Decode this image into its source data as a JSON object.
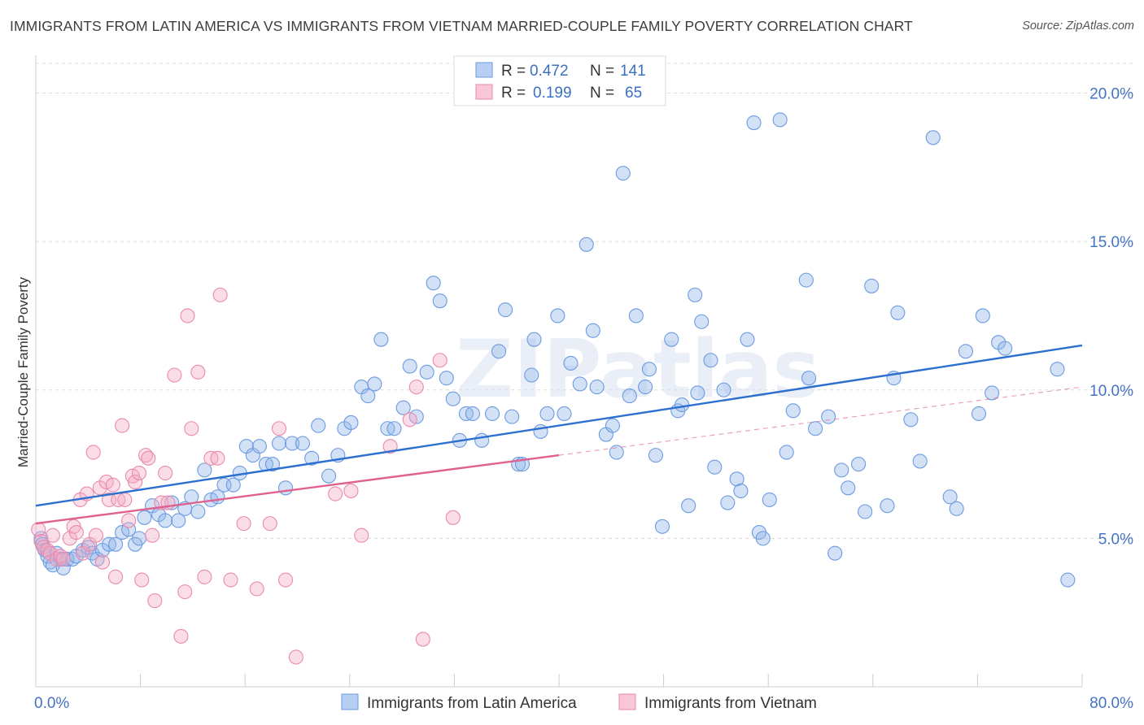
{
  "title": "IMMIGRANTS FROM LATIN AMERICA VS IMMIGRANTS FROM VIETNAM MARRIED-COUPLE FAMILY POVERTY CORRELATION CHART",
  "source": "Source: ZipAtlas.com",
  "watermark": "ZIPatlas",
  "chart_data": {
    "type": "scatter",
    "xlabel": "",
    "ylabel": "Married-Couple Family Poverty",
    "xlim": [
      0,
      80
    ],
    "ylim": [
      0,
      21
    ],
    "x_tick_labels": [
      {
        "value": 0,
        "label": "0.0%"
      },
      {
        "value": 80,
        "label": "80.0%"
      }
    ],
    "y_tick_labels": [
      {
        "value": 5,
        "label": "5.0%"
      },
      {
        "value": 10,
        "label": "10.0%"
      },
      {
        "value": 15,
        "label": "15.0%"
      },
      {
        "value": 20,
        "label": "20.0%"
      }
    ],
    "legend": [
      {
        "r_label": "R =",
        "r_value": "0.472",
        "n_label": "N =",
        "n_value": "141"
      },
      {
        "r_label": "R =",
        "r_value": "0.199",
        "n_label": "N =",
        "n_value": "65"
      }
    ],
    "series": [
      {
        "name": "Immigrants from Latin America",
        "color": "#8fb4e8",
        "line_color": "#2c6fcf",
        "trend": {
          "x0": 0,
          "y0": 6.1,
          "x1": 80,
          "y1": 11.5,
          "dashed_from": null
        },
        "points": [
          [
            0.4,
            5.0
          ],
          [
            0.5,
            4.8
          ],
          [
            0.7,
            4.6
          ],
          [
            0.9,
            4.4
          ],
          [
            1.1,
            4.2
          ],
          [
            1.3,
            4.1
          ],
          [
            1.6,
            4.5
          ],
          [
            1.9,
            4.3
          ],
          [
            2.1,
            4.0
          ],
          [
            2.4,
            4.3
          ],
          [
            2.8,
            4.3
          ],
          [
            3.1,
            4.4
          ],
          [
            3.6,
            4.6
          ],
          [
            4.0,
            4.7
          ],
          [
            4.3,
            4.5
          ],
          [
            4.7,
            4.3
          ],
          [
            5.1,
            4.6
          ],
          [
            5.6,
            4.8
          ],
          [
            6.1,
            4.8
          ],
          [
            6.6,
            5.2
          ],
          [
            7.1,
            5.3
          ],
          [
            7.6,
            4.8
          ],
          [
            7.9,
            5.0
          ],
          [
            8.3,
            5.7
          ],
          [
            8.9,
            6.1
          ],
          [
            9.4,
            5.8
          ],
          [
            9.9,
            5.6
          ],
          [
            10.4,
            6.2
          ],
          [
            10.9,
            5.6
          ],
          [
            11.4,
            6.0
          ],
          [
            11.9,
            6.4
          ],
          [
            12.4,
            5.9
          ],
          [
            12.9,
            7.3
          ],
          [
            13.4,
            6.3
          ],
          [
            13.9,
            6.4
          ],
          [
            14.4,
            6.8
          ],
          [
            15.1,
            6.8
          ],
          [
            15.6,
            7.2
          ],
          [
            16.1,
            8.1
          ],
          [
            16.6,
            7.8
          ],
          [
            17.1,
            8.1
          ],
          [
            17.6,
            7.5
          ],
          [
            18.1,
            7.5
          ],
          [
            18.6,
            8.2
          ],
          [
            19.1,
            6.7
          ],
          [
            19.6,
            8.2
          ],
          [
            20.4,
            8.2
          ],
          [
            21.1,
            7.7
          ],
          [
            21.6,
            8.8
          ],
          [
            22.4,
            7.1
          ],
          [
            23.1,
            7.8
          ],
          [
            23.6,
            8.7
          ],
          [
            24.1,
            8.9
          ],
          [
            24.9,
            10.1
          ],
          [
            25.4,
            9.8
          ],
          [
            25.9,
            10.2
          ],
          [
            26.4,
            11.7
          ],
          [
            26.9,
            8.7
          ],
          [
            27.4,
            8.7
          ],
          [
            28.1,
            9.4
          ],
          [
            28.6,
            10.8
          ],
          [
            29.1,
            9.1
          ],
          [
            29.9,
            10.6
          ],
          [
            30.4,
            13.6
          ],
          [
            30.9,
            13.0
          ],
          [
            31.4,
            10.4
          ],
          [
            31.9,
            9.7
          ],
          [
            32.4,
            8.3
          ],
          [
            32.9,
            9.2
          ],
          [
            33.4,
            9.2
          ],
          [
            34.1,
            8.3
          ],
          [
            34.9,
            9.2
          ],
          [
            35.4,
            11.3
          ],
          [
            35.9,
            12.7
          ],
          [
            36.4,
            9.1
          ],
          [
            36.9,
            7.5
          ],
          [
            37.2,
            7.5
          ],
          [
            37.9,
            10.5
          ],
          [
            38.1,
            11.7
          ],
          [
            38.6,
            8.6
          ],
          [
            39.1,
            9.2
          ],
          [
            39.9,
            12.5
          ],
          [
            40.4,
            9.2
          ],
          [
            40.9,
            10.9
          ],
          [
            41.6,
            10.2
          ],
          [
            42.1,
            14.9
          ],
          [
            42.6,
            12.0
          ],
          [
            42.9,
            10.1
          ],
          [
            43.6,
            8.5
          ],
          [
            44.1,
            8.8
          ],
          [
            44.4,
            7.9
          ],
          [
            44.9,
            17.3
          ],
          [
            45.4,
            9.8
          ],
          [
            45.9,
            12.5
          ],
          [
            46.6,
            10.1
          ],
          [
            46.9,
            10.7
          ],
          [
            47.4,
            7.8
          ],
          [
            47.9,
            5.4
          ],
          [
            48.6,
            11.7
          ],
          [
            49.1,
            9.3
          ],
          [
            49.4,
            9.5
          ],
          [
            49.9,
            6.1
          ],
          [
            50.4,
            13.2
          ],
          [
            50.6,
            9.9
          ],
          [
            50.9,
            12.3
          ],
          [
            51.6,
            11.0
          ],
          [
            51.9,
            7.4
          ],
          [
            52.6,
            10.0
          ],
          [
            52.9,
            6.2
          ],
          [
            53.6,
            7.0
          ],
          [
            53.9,
            6.6
          ],
          [
            54.4,
            11.7
          ],
          [
            54.9,
            19.0
          ],
          [
            55.3,
            5.2
          ],
          [
            55.6,
            5.0
          ],
          [
            56.1,
            6.3
          ],
          [
            56.9,
            19.1
          ],
          [
            57.4,
            7.9
          ],
          [
            57.9,
            9.3
          ],
          [
            58.9,
            13.7
          ],
          [
            59.1,
            10.4
          ],
          [
            59.6,
            8.7
          ],
          [
            60.6,
            9.1
          ],
          [
            61.1,
            4.5
          ],
          [
            61.6,
            7.3
          ],
          [
            62.1,
            6.7
          ],
          [
            62.9,
            7.5
          ],
          [
            63.4,
            5.9
          ],
          [
            63.9,
            13.5
          ],
          [
            65.1,
            6.1
          ],
          [
            65.6,
            10.4
          ],
          [
            65.9,
            12.6
          ],
          [
            66.9,
            9.0
          ],
          [
            67.6,
            7.6
          ],
          [
            68.6,
            18.5
          ],
          [
            69.9,
            6.4
          ],
          [
            70.4,
            6.0
          ],
          [
            71.1,
            11.3
          ],
          [
            72.1,
            9.2
          ],
          [
            72.4,
            12.5
          ],
          [
            73.1,
            9.9
          ],
          [
            73.6,
            11.6
          ],
          [
            74.1,
            11.4
          ],
          [
            78.9,
            3.6
          ],
          [
            78.1,
            10.7
          ]
        ]
      },
      {
        "name": "Immigrants from Vietnam",
        "color": "#f4aac4",
        "line_color": "#e0608e",
        "trend": {
          "x0": 0,
          "y0": 5.5,
          "x1": 80,
          "y1": 10.1,
          "dashed_from": 40
        },
        "points": [
          [
            0.2,
            5.3
          ],
          [
            0.4,
            4.9
          ],
          [
            0.6,
            4.7
          ],
          [
            0.9,
            4.6
          ],
          [
            1.1,
            4.5
          ],
          [
            1.3,
            5.1
          ],
          [
            1.6,
            4.3
          ],
          [
            1.9,
            4.4
          ],
          [
            2.1,
            4.3
          ],
          [
            2.6,
            5.0
          ],
          [
            2.9,
            5.4
          ],
          [
            3.1,
            5.2
          ],
          [
            3.4,
            6.3
          ],
          [
            3.6,
            4.5
          ],
          [
            3.9,
            6.5
          ],
          [
            4.1,
            4.8
          ],
          [
            4.4,
            7.9
          ],
          [
            4.6,
            5.1
          ],
          [
            4.9,
            6.7
          ],
          [
            5.1,
            4.2
          ],
          [
            5.4,
            6.9
          ],
          [
            5.6,
            6.3
          ],
          [
            5.9,
            6.8
          ],
          [
            6.1,
            3.7
          ],
          [
            6.3,
            6.3
          ],
          [
            6.6,
            8.8
          ],
          [
            6.8,
            6.3
          ],
          [
            7.1,
            5.6
          ],
          [
            7.4,
            7.1
          ],
          [
            7.6,
            6.9
          ],
          [
            7.9,
            7.2
          ],
          [
            8.1,
            3.6
          ],
          [
            8.4,
            7.8
          ],
          [
            8.6,
            7.7
          ],
          [
            8.9,
            5.1
          ],
          [
            9.1,
            2.9
          ],
          [
            9.6,
            6.2
          ],
          [
            9.9,
            7.2
          ],
          [
            10.1,
            6.2
          ],
          [
            10.6,
            10.5
          ],
          [
            11.1,
            1.7
          ],
          [
            11.4,
            3.2
          ],
          [
            11.6,
            12.5
          ],
          [
            11.9,
            8.7
          ],
          [
            12.4,
            10.6
          ],
          [
            12.9,
            3.7
          ],
          [
            13.4,
            7.7
          ],
          [
            13.9,
            7.7
          ],
          [
            14.1,
            13.2
          ],
          [
            14.9,
            3.6
          ],
          [
            15.9,
            5.5
          ],
          [
            16.9,
            3.3
          ],
          [
            17.9,
            5.5
          ],
          [
            18.6,
            8.7
          ],
          [
            19.1,
            3.6
          ],
          [
            19.9,
            1.0
          ],
          [
            22.9,
            6.5
          ],
          [
            24.1,
            6.6
          ],
          [
            24.9,
            5.1
          ],
          [
            27.1,
            8.1
          ],
          [
            28.6,
            9.0
          ],
          [
            29.1,
            10.1
          ],
          [
            29.6,
            1.6
          ],
          [
            30.9,
            11.0
          ],
          [
            31.9,
            5.7
          ]
        ]
      }
    ]
  }
}
